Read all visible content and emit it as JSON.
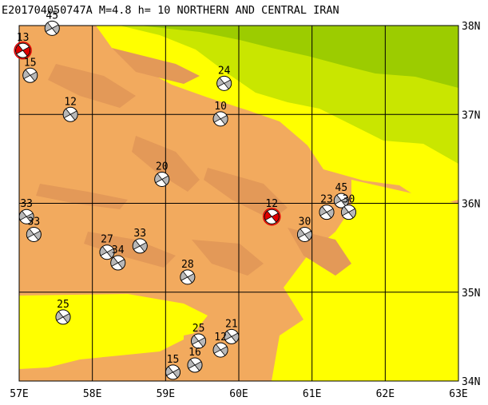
{
  "title": "E20170405074​7A M=4.8 h= 10 NORTHERN AND CENTRAL IRAN",
  "axes": {
    "x_ticks": [
      "57E",
      "58E",
      "59E",
      "60E",
      "61E",
      "62E",
      "63E"
    ],
    "y_ticks": [
      "38N",
      "37N",
      "36N",
      "35N",
      "34N"
    ],
    "lon_range": [
      57,
      63
    ],
    "lat_range": [
      34,
      38
    ]
  },
  "colors": {
    "low_terrain": "#ffff00",
    "mid_terrain": "#f2aa5e",
    "high_terrain": "#e39958",
    "lowland_green": "#c9e600",
    "lowland_darkgreen": "#9ccc00",
    "grid": "#000000",
    "beachball_quadrant": "#b8b8b8",
    "event_highlight": "#e00000"
  },
  "events": [
    {
      "depth": "45",
      "lon": 57.45,
      "lat": 37.97
    },
    {
      "depth": "13",
      "lon": 57.05,
      "lat": 37.72,
      "highlight": true
    },
    {
      "depth": "15",
      "lon": 57.15,
      "lat": 37.44
    },
    {
      "depth": "12",
      "lon": 57.7,
      "lat": 37.0
    },
    {
      "depth": "24",
      "lon": 59.8,
      "lat": 37.35
    },
    {
      "depth": "10",
      "lon": 59.75,
      "lat": 36.95
    },
    {
      "depth": "20",
      "lon": 58.95,
      "lat": 36.27
    },
    {
      "depth": "33",
      "lon": 57.1,
      "lat": 35.85
    },
    {
      "depth": "33",
      "lon": 57.2,
      "lat": 35.65
    },
    {
      "depth": "27",
      "lon": 58.2,
      "lat": 35.45
    },
    {
      "depth": "34",
      "lon": 58.35,
      "lat": 35.33
    },
    {
      "depth": "33",
      "lon": 58.65,
      "lat": 35.52
    },
    {
      "depth": "28",
      "lon": 59.3,
      "lat": 35.17
    },
    {
      "depth": "12",
      "lon": 60.45,
      "lat": 35.85,
      "highlight": true
    },
    {
      "depth": "30",
      "lon": 60.9,
      "lat": 35.65
    },
    {
      "depth": "45",
      "lon": 61.4,
      "lat": 36.03
    },
    {
      "depth": "23",
      "lon": 61.2,
      "lat": 35.9
    },
    {
      "depth": "30",
      "lon": 61.5,
      "lat": 35.9
    },
    {
      "depth": "25",
      "lon": 57.6,
      "lat": 34.72
    },
    {
      "depth": "25",
      "lon": 59.45,
      "lat": 34.45
    },
    {
      "depth": "21",
      "lon": 59.9,
      "lat": 34.5
    },
    {
      "depth": "12",
      "lon": 59.75,
      "lat": 34.35
    },
    {
      "depth": "15",
      "lon": 59.1,
      "lat": 34.1
    },
    {
      "depth": "16",
      "lon": 59.4,
      "lat": 34.18
    }
  ]
}
